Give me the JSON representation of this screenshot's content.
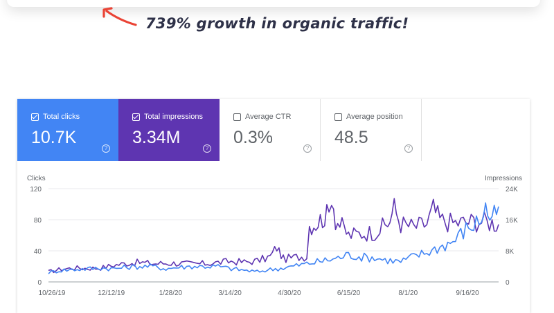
{
  "headline": "739% growth in organic traffic!",
  "colors": {
    "clicks": "#4285f4",
    "impressions": "#5e35b1",
    "arrow": "#ea4335",
    "headline": "#2e3148"
  },
  "metrics": {
    "total_clicks": {
      "label": "Total clicks",
      "value": "10.7K",
      "checked": true,
      "help": "?"
    },
    "total_impressions": {
      "label": "Total impressions",
      "value": "3.34M",
      "checked": true,
      "help": "?"
    },
    "average_ctr": {
      "label": "Average CTR",
      "value": "0.3%",
      "checked": false,
      "help": "?"
    },
    "average_position": {
      "label": "Average position",
      "value": "48.5",
      "checked": false,
      "help": "?"
    }
  },
  "chart_data": {
    "type": "line",
    "left_axis_label": "Clicks",
    "right_axis_label": "Impressions",
    "left_ticks": [
      "120",
      "80",
      "40",
      "0"
    ],
    "right_ticks": [
      "24K",
      "16K",
      "8K",
      "0"
    ],
    "ylim_left": [
      0,
      120
    ],
    "ylim_right": [
      0,
      24000
    ],
    "x_tick_labels": [
      "10/26/19",
      "12/12/19",
      "1/28/20",
      "3/14/20",
      "4/30/20",
      "6/15/20",
      "8/1/20",
      "9/16/20"
    ],
    "x_range_days": [
      0,
      345
    ],
    "series": [
      {
        "name": "Total impressions",
        "axis": "right",
        "points": [
          [
            0,
            2600
          ],
          [
            10,
            3300
          ],
          [
            20,
            3600
          ],
          [
            30,
            3500
          ],
          [
            40,
            3600
          ],
          [
            50,
            4300
          ],
          [
            60,
            4800
          ],
          [
            70,
            5000
          ],
          [
            80,
            4700
          ],
          [
            90,
            4800
          ],
          [
            100,
            4800
          ],
          [
            110,
            4600
          ],
          [
            120,
            4700
          ],
          [
            130,
            5000
          ],
          [
            140,
            5300
          ],
          [
            150,
            5100
          ],
          [
            160,
            5400
          ],
          [
            170,
            6500
          ],
          [
            175,
            9000
          ],
          [
            180,
            5900
          ],
          [
            190,
            6400
          ],
          [
            198,
            6600
          ],
          [
            200,
            14600
          ],
          [
            205,
            15000
          ],
          [
            210,
            16400
          ],
          [
            215,
            17500
          ],
          [
            217,
            23600
          ],
          [
            220,
            16000
          ],
          [
            225,
            14200
          ],
          [
            230,
            12000
          ],
          [
            240,
            12500
          ],
          [
            250,
            12900
          ],
          [
            260,
            14800
          ],
          [
            265,
            19000
          ],
          [
            270,
            15000
          ],
          [
            280,
            14100
          ],
          [
            290,
            15000
          ],
          [
            295,
            18800
          ],
          [
            300,
            16000
          ],
          [
            310,
            15200
          ],
          [
            320,
            15400
          ],
          [
            330,
            15700
          ],
          [
            340,
            15300
          ],
          [
            345,
            14800
          ]
        ]
      },
      {
        "name": "Total clicks",
        "axis": "left",
        "points": [
          [
            0,
            12
          ],
          [
            10,
            15
          ],
          [
            20,
            16
          ],
          [
            30,
            17
          ],
          [
            40,
            18
          ],
          [
            50,
            17
          ],
          [
            60,
            19
          ],
          [
            70,
            20
          ],
          [
            80,
            20
          ],
          [
            90,
            17
          ],
          [
            100,
            19
          ],
          [
            110,
            20
          ],
          [
            120,
            20
          ],
          [
            130,
            20
          ],
          [
            140,
            17
          ],
          [
            150,
            15
          ],
          [
            160,
            13
          ],
          [
            170,
            16
          ],
          [
            180,
            18
          ],
          [
            190,
            21
          ],
          [
            200,
            24
          ],
          [
            210,
            27
          ],
          [
            220,
            30
          ],
          [
            230,
            35
          ],
          [
            240,
            32
          ],
          [
            250,
            31
          ],
          [
            260,
            28
          ],
          [
            270,
            26
          ],
          [
            280,
            33
          ],
          [
            290,
            38
          ],
          [
            300,
            45
          ],
          [
            310,
            52
          ],
          [
            320,
            68
          ],
          [
            330,
            78
          ],
          [
            335,
            95
          ],
          [
            340,
            78
          ],
          [
            345,
            97
          ]
        ]
      }
    ]
  }
}
